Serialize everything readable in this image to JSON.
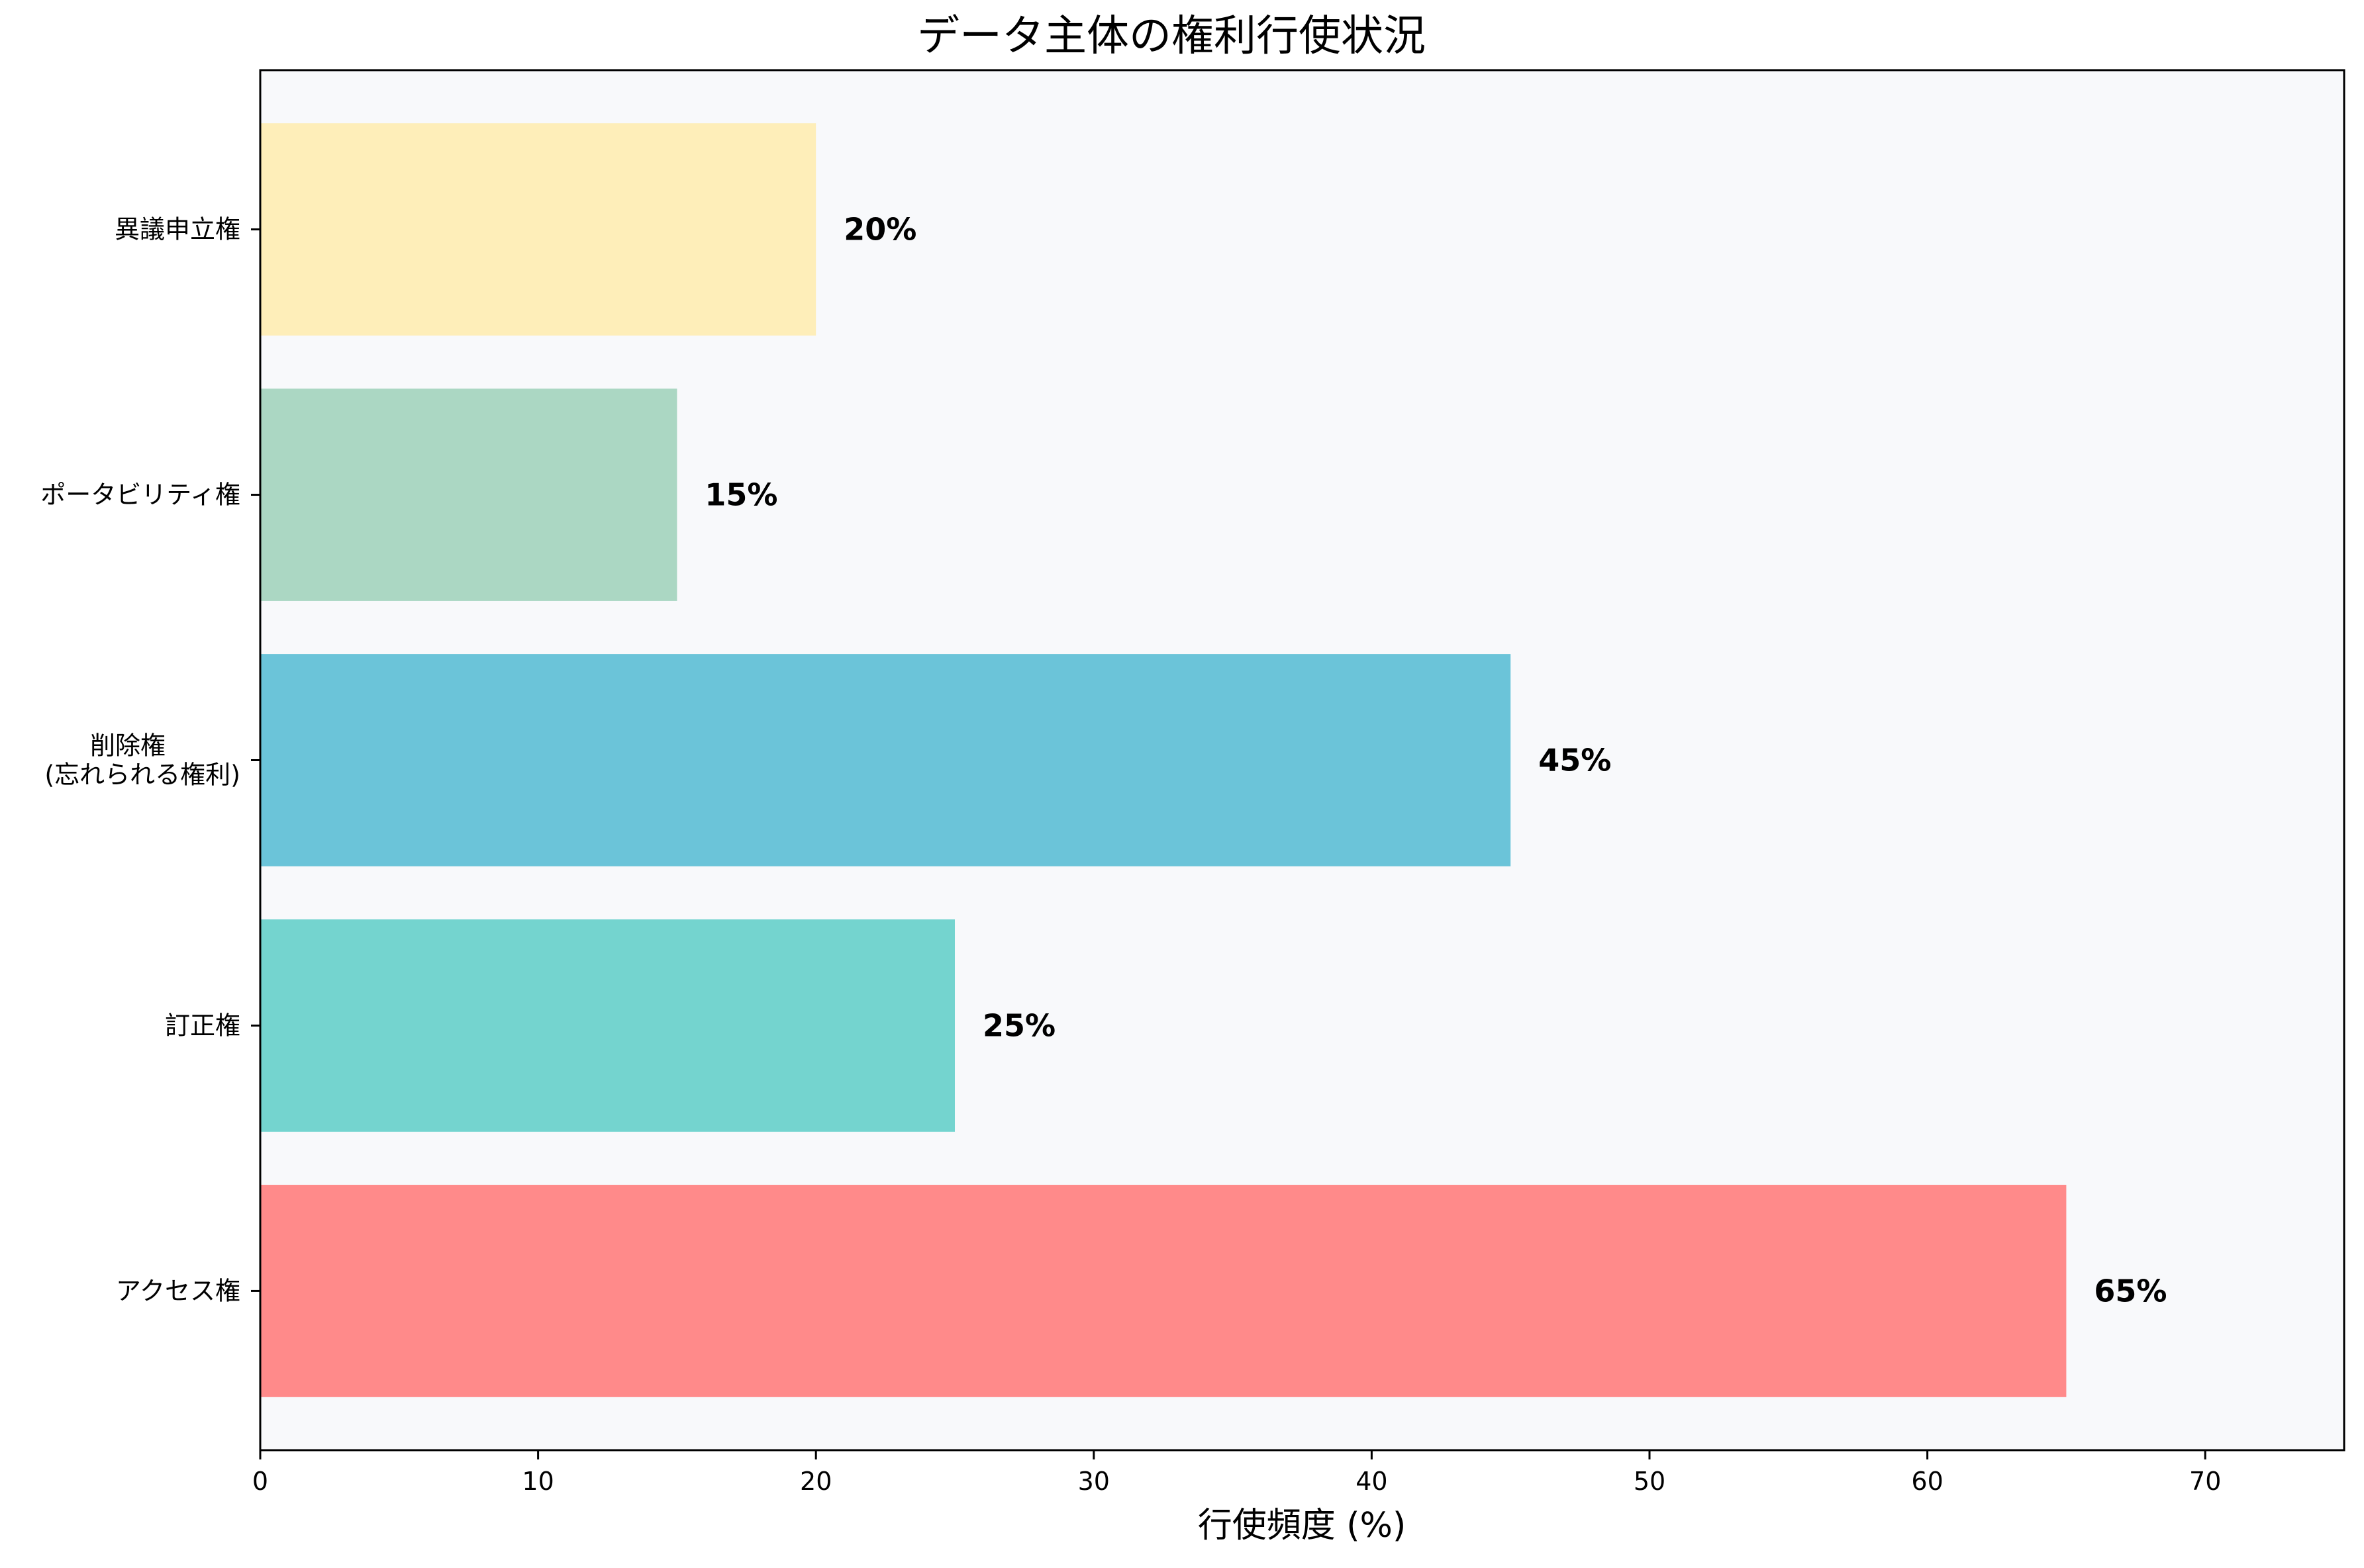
{
  "chart_data": {
    "type": "bar",
    "orientation": "horizontal",
    "title": "データ主体の権利行使状況",
    "xlabel": "行使頻度 (%)",
    "ylabel": "",
    "xlim": [
      0,
      75
    ],
    "x_ticks": [
      0,
      10,
      20,
      30,
      40,
      50,
      60,
      70
    ],
    "grid": false,
    "plot_background": "#f8f9fb",
    "categories": [
      {
        "lines": [
          "アクセス権"
        ]
      },
      {
        "lines": [
          "訂正権"
        ]
      },
      {
        "lines": [
          "削除権",
          "(忘れられる権利)"
        ]
      },
      {
        "lines": [
          "ポータビリティ権"
        ]
      },
      {
        "lines": [
          "異議申立権"
        ]
      }
    ],
    "values": [
      65,
      25,
      45,
      15,
      20
    ],
    "data_labels": [
      "65%",
      "25%",
      "45%",
      "15%",
      "20%"
    ],
    "colors": [
      "#ff8a8a",
      "#74d4cf",
      "#6bc4d9",
      "#abd7c3",
      "#feeeb9"
    ]
  }
}
